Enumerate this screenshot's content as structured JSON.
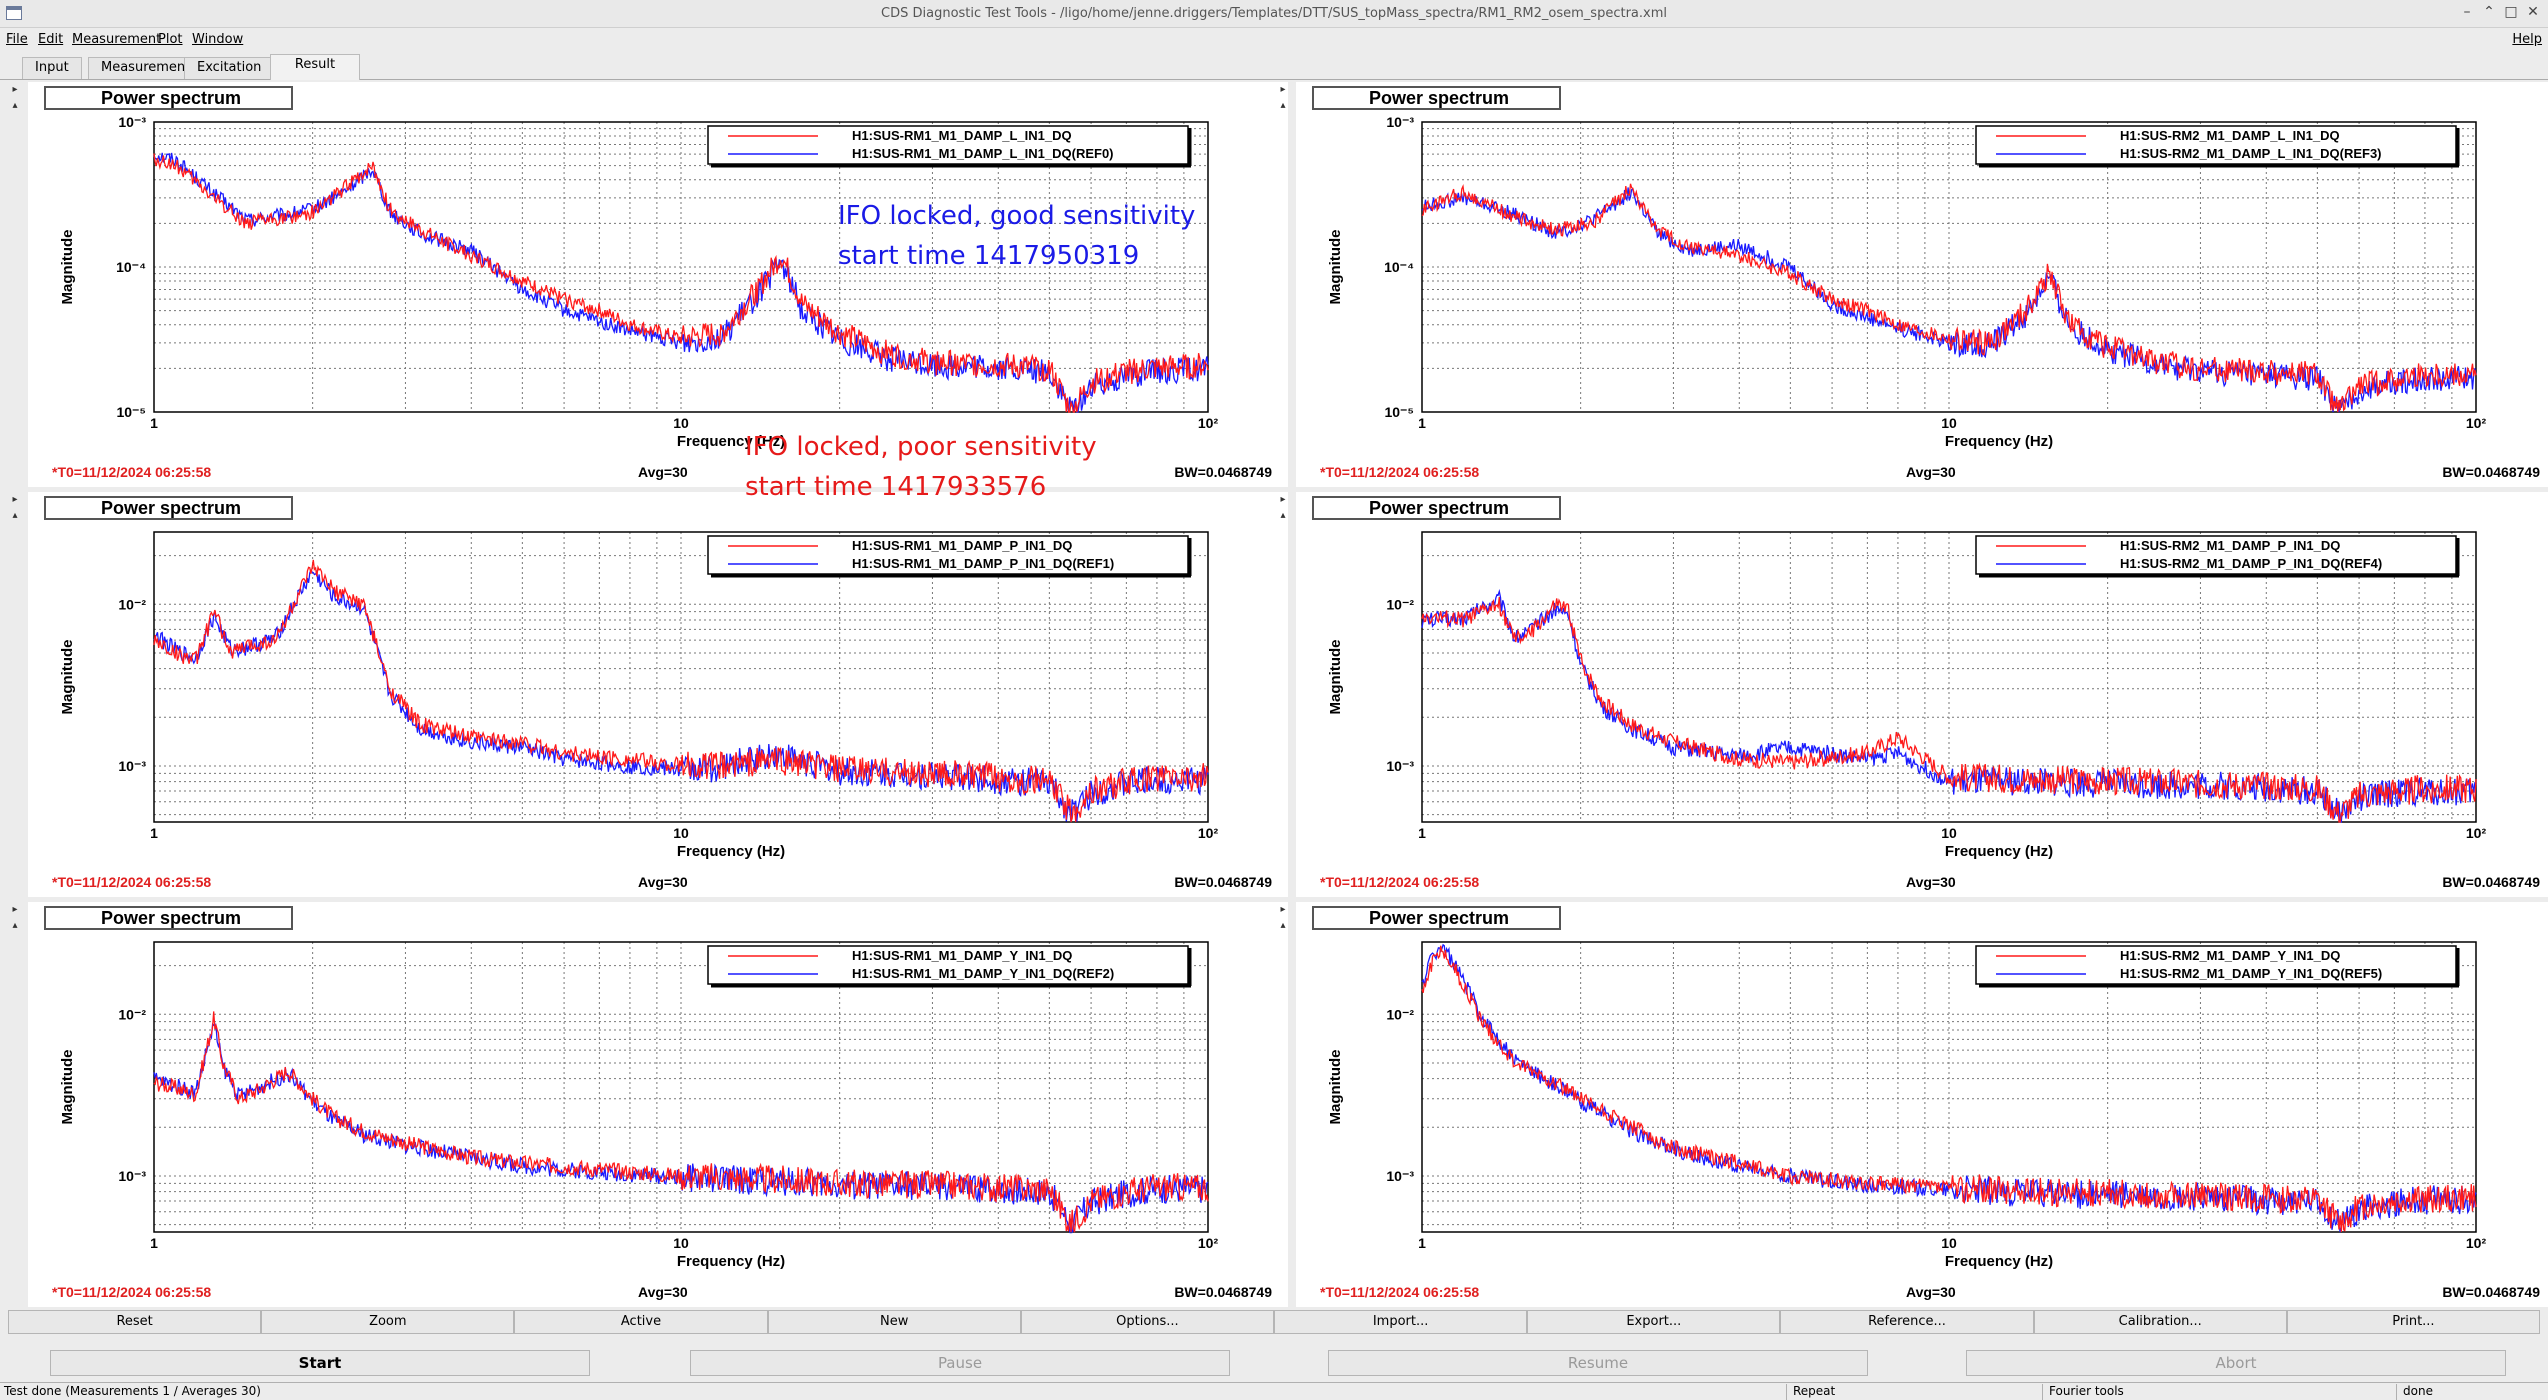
{
  "window": {
    "title": "CDS Diagnostic Test Tools - /ligo/home/jenne.driggers/Templates/DTT/SUS_topMass_spectra/RM1_RM2_osem_spectra.xml",
    "controls": [
      "–",
      "⌃",
      "□",
      "✕"
    ]
  },
  "menu": {
    "items": [
      "File",
      "Edit",
      "Measurement",
      "Plot",
      "Window"
    ],
    "help": "Help"
  },
  "tabs": [
    "Input",
    "Measurement",
    "Excitation",
    "Result"
  ],
  "panels": [
    {
      "title": "Power spectrum",
      "legend": [
        "H1:SUS-RM1_M1_DAMP_L_IN1_DQ",
        "H1:SUS-RM1_M1_DAMP_L_IN1_DQ(REF0)"
      ],
      "ylabel": "Magnitude",
      "xlabel": "Frequency (Hz)",
      "yticks": [
        "10⁻³",
        "10⁻⁴",
        "10⁻⁵"
      ],
      "xticks": [
        "1",
        "10",
        "10²"
      ],
      "t0": "*T0=11/12/2024 06:25:58",
      "avg": "Avg=30",
      "bw": "BW=0.0468749"
    },
    {
      "title": "Power spectrum",
      "legend": [
        "H1:SUS-RM2_M1_DAMP_L_IN1_DQ",
        "H1:SUS-RM2_M1_DAMP_L_IN1_DQ(REF3)"
      ],
      "ylabel": "Magnitude",
      "xlabel": "Frequency (Hz)",
      "yticks": [
        "10⁻³",
        "10⁻⁴",
        "10⁻⁵"
      ],
      "xticks": [
        "1",
        "10",
        "10²"
      ],
      "t0": "*T0=11/12/2024 06:25:58",
      "avg": "Avg=30",
      "bw": "BW=0.0468749"
    },
    {
      "title": "Power spectrum",
      "legend": [
        "H1:SUS-RM1_M1_DAMP_P_IN1_DQ",
        "H1:SUS-RM1_M1_DAMP_P_IN1_DQ(REF1)"
      ],
      "ylabel": "Magnitude",
      "xlabel": "Frequency (Hz)",
      "yticks": [
        "10⁻²",
        "10⁻³"
      ],
      "xticks": [
        "1",
        "10",
        "10²"
      ],
      "t0": "*T0=11/12/2024 06:25:58",
      "avg": "Avg=30",
      "bw": "BW=0.0468749"
    },
    {
      "title": "Power spectrum",
      "legend": [
        "H1:SUS-RM2_M1_DAMP_P_IN1_DQ",
        "H1:SUS-RM2_M1_DAMP_P_IN1_DQ(REF4)"
      ],
      "ylabel": "Magnitude",
      "xlabel": "Frequency (Hz)",
      "yticks": [
        "10⁻²",
        "10⁻³"
      ],
      "xticks": [
        "1",
        "10",
        "10²"
      ],
      "t0": "*T0=11/12/2024 06:25:58",
      "avg": "Avg=30",
      "bw": "BW=0.0468749"
    },
    {
      "title": "Power spectrum",
      "legend": [
        "H1:SUS-RM1_M1_DAMP_Y_IN1_DQ",
        "H1:SUS-RM1_M1_DAMP_Y_IN1_DQ(REF2)"
      ],
      "ylabel": "Magnitude",
      "xlabel": "Frequency (Hz)",
      "yticks": [
        "10⁻²",
        "10⁻³"
      ],
      "xticks": [
        "1",
        "10",
        "10²"
      ],
      "t0": "*T0=11/12/2024 06:25:58",
      "avg": "Avg=30",
      "bw": "BW=0.0468749"
    },
    {
      "title": "Power spectrum",
      "legend": [
        "H1:SUS-RM2_M1_DAMP_Y_IN1_DQ",
        "H1:SUS-RM2_M1_DAMP_Y_IN1_DQ(REF5)"
      ],
      "ylabel": "Magnitude",
      "xlabel": "Frequency (Hz)",
      "yticks": [
        "10⁻²",
        "10⁻³"
      ],
      "xticks": [
        "1",
        "10",
        "10²"
      ],
      "t0": "*T0=11/12/2024 06:25:58",
      "avg": "Avg=30",
      "bw": "BW=0.0468749"
    }
  ],
  "annotations": {
    "good": "IFO locked, good sensitivity\nstart time 1417950319",
    "poor": "IFO locked, poor sensitivity\nstart time 1417933576"
  },
  "colors": {
    "current": "#ff1a1a",
    "reference": "#1a1aff",
    "annotation_good": "#1a1ae6",
    "annotation_poor": "#e61a1a",
    "t0": "#e02020"
  },
  "buttons": {
    "plot": [
      "Reset",
      "Zoom",
      "Active",
      "New",
      "Options...",
      "Import...",
      "Export...",
      "Reference...",
      "Calibration...",
      "Print..."
    ],
    "run": [
      "Start",
      "Pause",
      "Resume",
      "Abort"
    ]
  },
  "status": {
    "main": "Test done (Measurements 1 / Averages 30)",
    "repeat": "Repeat",
    "fourier": "Fourier tools",
    "state": "done"
  },
  "chart_data": [
    {
      "type": "line",
      "panel": 0,
      "x_scale": "log",
      "y_scale": "log",
      "xlim": [
        1,
        100
      ],
      "ylim": [
        1e-05,
        0.001
      ],
      "grid": true,
      "legend": "top-right",
      "series": [
        {
          "name": "H1:SUS-RM1_M1_DAMP_L_IN1_DQ",
          "color": "red",
          "x": [
            1,
            1.1,
            1.3,
            1.5,
            1.8,
            2.0,
            2.3,
            2.6,
            2.8,
            3.2,
            4,
            5,
            6,
            7,
            8,
            10,
            12,
            14,
            15.5,
            17,
            20,
            25,
            30,
            40,
            50,
            55,
            60,
            70,
            80,
            100
          ],
          "y": [
            0.00055,
            0.0005,
            0.0003,
            0.0002,
            0.00022,
            0.00024,
            0.00035,
            0.0005,
            0.00025,
            0.00018,
            0.00012,
            8e-05,
            6e-05,
            5e-05,
            4e-05,
            3.2e-05,
            3.5e-05,
            7e-05,
            0.00012,
            5.5e-05,
            3.5e-05,
            2.5e-05,
            2.2e-05,
            2.1e-05,
            2e-05,
            1e-05,
            1.6e-05,
            1.9e-05,
            2e-05,
            2.1e-05
          ]
        },
        {
          "name": "H1:SUS-RM1_M1_DAMP_L_IN1_DQ(REF0)",
          "color": "blue",
          "x": [
            1,
            1.1,
            1.3,
            1.5,
            1.8,
            2.0,
            2.3,
            2.6,
            2.8,
            3.2,
            4,
            5,
            6,
            7,
            8,
            10,
            12,
            14,
            15.5,
            17,
            20,
            25,
            30,
            40,
            50,
            55,
            60,
            70,
            80,
            100
          ],
          "y": [
            0.0006,
            0.00055,
            0.00032,
            0.00021,
            0.00023,
            0.00025,
            0.00033,
            0.00048,
            0.00024,
            0.00017,
            0.00013,
            7e-05,
            5e-05,
            4.2e-05,
            3.6e-05,
            3e-05,
            3.3e-05,
            6.5e-05,
            0.00011,
            5e-05,
            3.2e-05,
            2.3e-05,
            2.1e-05,
            2e-05,
            1.9e-05,
            1e-05,
            1.5e-05,
            1.8e-05,
            1.9e-05,
            2e-05
          ]
        }
      ]
    },
    {
      "type": "line",
      "panel": 1,
      "x_scale": "log",
      "y_scale": "log",
      "xlim": [
        1,
        100
      ],
      "ylim": [
        1e-05,
        0.001
      ],
      "grid": true,
      "legend": "top-right",
      "series": [
        {
          "name": "H1:SUS-RM2_M1_DAMP_L_IN1_DQ",
          "color": "red",
          "x": [
            1,
            1.2,
            1.5,
            1.8,
            2.1,
            2.5,
            2.8,
            3.2,
            4,
            5,
            6,
            7,
            8,
            10,
            12,
            14,
            15.5,
            17,
            20,
            25,
            30,
            40,
            50,
            55,
            60,
            70,
            80,
            100
          ],
          "y": [
            0.00025,
            0.00033,
            0.00022,
            0.00018,
            0.0002,
            0.00035,
            0.00018,
            0.00014,
            0.00012,
            9e-05,
            6e-05,
            5e-05,
            4e-05,
            3.2e-05,
            3e-05,
            5e-05,
            9e-05,
            4e-05,
            2.8e-05,
            2.2e-05,
            2e-05,
            1.9e-05,
            1.8e-05,
            1e-05,
            1.5e-05,
            1.7e-05,
            1.8e-05,
            1.8e-05
          ]
        },
        {
          "name": "H1:SUS-RM2_M1_DAMP_L_IN1_DQ(REF3)",
          "color": "blue",
          "x": [
            1,
            1.2,
            1.5,
            1.8,
            2.1,
            2.5,
            2.8,
            3.2,
            4,
            5,
            6,
            7,
            8,
            10,
            12,
            14,
            15.5,
            17,
            20,
            25,
            30,
            40,
            50,
            55,
            60,
            70,
            80,
            100
          ],
          "y": [
            0.00026,
            0.0003,
            0.00023,
            0.00017,
            0.00021,
            0.00033,
            0.00017,
            0.00013,
            0.00014,
            0.0001,
            5.5e-05,
            4.5e-05,
            3.8e-05,
            3e-05,
            2.9e-05,
            4.6e-05,
            8.5e-05,
            3.8e-05,
            2.7e-05,
            2.1e-05,
            1.9e-05,
            1.8e-05,
            1.7e-05,
            1e-05,
            1.4e-05,
            1.6e-05,
            1.7e-05,
            1.7e-05
          ]
        }
      ]
    },
    {
      "type": "line",
      "panel": 2,
      "x_scale": "log",
      "y_scale": "log",
      "xlim": [
        1,
        100
      ],
      "ylim": [
        0.00045,
        0.028
      ],
      "grid": true,
      "legend": "top-right",
      "series": [
        {
          "name": "H1:SUS-RM1_M1_DAMP_P_IN1_DQ",
          "color": "red",
          "x": [
            1,
            1.1,
            1.2,
            1.3,
            1.4,
            1.5,
            1.7,
            2.0,
            2.2,
            2.5,
            2.8,
            3.2,
            4,
            5,
            6,
            8,
            10,
            12,
            15,
            20,
            30,
            40,
            50,
            55,
            60,
            70,
            80,
            100
          ],
          "y": [
            0.006,
            0.005,
            0.0045,
            0.009,
            0.005,
            0.0055,
            0.006,
            0.017,
            0.012,
            0.01,
            0.003,
            0.0018,
            0.0015,
            0.0014,
            0.0012,
            0.0011,
            0.001,
            0.001,
            0.0011,
            0.00095,
            0.0009,
            0.00085,
            0.0008,
            0.0005,
            0.0007,
            0.0008,
            0.00085,
            0.00085
          ]
        },
        {
          "name": "H1:SUS-RM1_M1_DAMP_P_IN1_DQ(REF1)",
          "color": "blue",
          "x": [
            1,
            1.1,
            1.2,
            1.3,
            1.4,
            1.5,
            1.7,
            2.0,
            2.2,
            2.5,
            2.8,
            3.2,
            4,
            5,
            6,
            8,
            10,
            12,
            15,
            20,
            30,
            40,
            50,
            55,
            60,
            70,
            80,
            100
          ],
          "y": [
            0.0065,
            0.0052,
            0.0046,
            0.0085,
            0.0052,
            0.0054,
            0.0062,
            0.016,
            0.011,
            0.0095,
            0.0028,
            0.0017,
            0.0014,
            0.0013,
            0.0011,
            0.001,
            0.00095,
            0.00098,
            0.0012,
            0.00092,
            0.00088,
            0.00082,
            0.00078,
            0.0005,
            0.00068,
            0.00078,
            0.00082,
            0.00082
          ]
        }
      ]
    },
    {
      "type": "line",
      "panel": 3,
      "x_scale": "log",
      "y_scale": "log",
      "xlim": [
        1,
        100
      ],
      "ylim": [
        0.00045,
        0.028
      ],
      "grid": true,
      "legend": "top-right",
      "series": [
        {
          "name": "H1:SUS-RM2_M1_DAMP_P_IN1_DQ",
          "color": "red",
          "x": [
            1,
            1.2,
            1.4,
            1.5,
            1.6,
            1.8,
            1.9,
            2.0,
            2.2,
            2.5,
            3,
            4,
            5,
            7,
            8,
            10,
            15,
            20,
            30,
            40,
            50,
            55,
            60,
            70,
            80,
            100
          ],
          "y": [
            0.0085,
            0.008,
            0.01,
            0.006,
            0.0065,
            0.01,
            0.009,
            0.0045,
            0.0025,
            0.0018,
            0.0014,
            0.0011,
            0.00105,
            0.0012,
            0.0015,
            0.00085,
            0.00082,
            0.0008,
            0.00078,
            0.00075,
            0.00072,
            0.0005,
            0.00065,
            0.0007,
            0.00072,
            0.00072
          ]
        },
        {
          "name": "H1:SUS-RM2_M1_DAMP_P_IN1_DQ(REF4)",
          "color": "blue",
          "x": [
            1,
            1.2,
            1.4,
            1.5,
            1.6,
            1.8,
            1.9,
            2.0,
            2.2,
            2.5,
            3,
            4,
            5,
            7,
            8,
            10,
            15,
            20,
            30,
            40,
            50,
            55,
            60,
            70,
            80,
            100
          ],
          "y": [
            0.008,
            0.0082,
            0.011,
            0.0062,
            0.0068,
            0.0095,
            0.0085,
            0.0042,
            0.0023,
            0.0017,
            0.0013,
            0.00115,
            0.0013,
            0.0011,
            0.0012,
            0.0008,
            0.0008,
            0.00078,
            0.00076,
            0.00073,
            0.0007,
            0.0005,
            0.00063,
            0.00068,
            0.0007,
            0.0007
          ]
        }
      ]
    },
    {
      "type": "line",
      "panel": 4,
      "x_scale": "log",
      "y_scale": "log",
      "xlim": [
        1,
        100
      ],
      "ylim": [
        0.00045,
        0.028
      ],
      "grid": true,
      "legend": "top-right",
      "series": [
        {
          "name": "H1:SUS-RM1_M1_DAMP_Y_IN1_DQ",
          "color": "red",
          "x": [
            1,
            1.1,
            1.2,
            1.3,
            1.35,
            1.45,
            1.6,
            1.8,
            2.0,
            2.2,
            2.5,
            3,
            4,
            5,
            7,
            10,
            15,
            20,
            30,
            40,
            50,
            55,
            60,
            70,
            80,
            100
          ],
          "y": [
            0.0038,
            0.0035,
            0.0032,
            0.0095,
            0.005,
            0.003,
            0.0035,
            0.0045,
            0.003,
            0.0023,
            0.0019,
            0.0016,
            0.0013,
            0.0012,
            0.0011,
            0.001,
            0.00095,
            0.0009,
            0.00088,
            0.00085,
            0.00082,
            0.0005,
            0.0007,
            0.0008,
            0.00085,
            0.00085
          ]
        },
        {
          "name": "H1:SUS-RM1_M1_DAMP_Y_IN1_DQ(REF2)",
          "color": "blue",
          "x": [
            1,
            1.1,
            1.2,
            1.3,
            1.35,
            1.45,
            1.6,
            1.8,
            2.0,
            2.2,
            2.5,
            3,
            4,
            5,
            7,
            10,
            15,
            20,
            30,
            40,
            50,
            55,
            60,
            70,
            80,
            100
          ],
          "y": [
            0.004,
            0.0036,
            0.0033,
            0.0088,
            0.0048,
            0.0031,
            0.0036,
            0.0043,
            0.0029,
            0.0022,
            0.0018,
            0.00155,
            0.0013,
            0.00115,
            0.00105,
            0.00098,
            0.00093,
            0.00088,
            0.00086,
            0.00083,
            0.0008,
            0.0005,
            0.00068,
            0.00078,
            0.00083,
            0.00083
          ]
        }
      ]
    },
    {
      "type": "line",
      "panel": 5,
      "x_scale": "log",
      "y_scale": "log",
      "xlim": [
        1,
        100
      ],
      "ylim": [
        0.00045,
        0.028
      ],
      "grid": true,
      "legend": "top-right",
      "series": [
        {
          "name": "H1:SUS-RM2_M1_DAMP_Y_IN1_DQ",
          "color": "red",
          "x": [
            1,
            1.05,
            1.1,
            1.2,
            1.3,
            1.5,
            1.8,
            2.0,
            2.5,
            3,
            4,
            5,
            7,
            10,
            15,
            20,
            30,
            40,
            50,
            55,
            60,
            70,
            80,
            100
          ],
          "y": [
            0.014,
            0.022,
            0.025,
            0.015,
            0.009,
            0.005,
            0.0038,
            0.003,
            0.002,
            0.0015,
            0.0012,
            0.001,
            0.0009,
            0.00085,
            0.0008,
            0.00078,
            0.00075,
            0.00073,
            0.0007,
            0.0005,
            0.00065,
            0.0007,
            0.00073,
            0.00073
          ]
        },
        {
          "name": "H1:SUS-RM2_M1_DAMP_Y_IN1_DQ(REF5)",
          "color": "blue",
          "x": [
            1,
            1.05,
            1.1,
            1.2,
            1.3,
            1.5,
            1.8,
            2.0,
            2.5,
            3,
            4,
            5,
            7,
            10,
            15,
            20,
            30,
            40,
            50,
            55,
            60,
            70,
            80,
            100
          ],
          "y": [
            0.015,
            0.024,
            0.026,
            0.016,
            0.0095,
            0.0052,
            0.0036,
            0.0029,
            0.0019,
            0.00145,
            0.00115,
            0.001,
            0.00088,
            0.00083,
            0.00078,
            0.00076,
            0.00073,
            0.00071,
            0.00068,
            0.0005,
            0.00063,
            0.00068,
            0.00071,
            0.00071
          ]
        }
      ]
    }
  ]
}
